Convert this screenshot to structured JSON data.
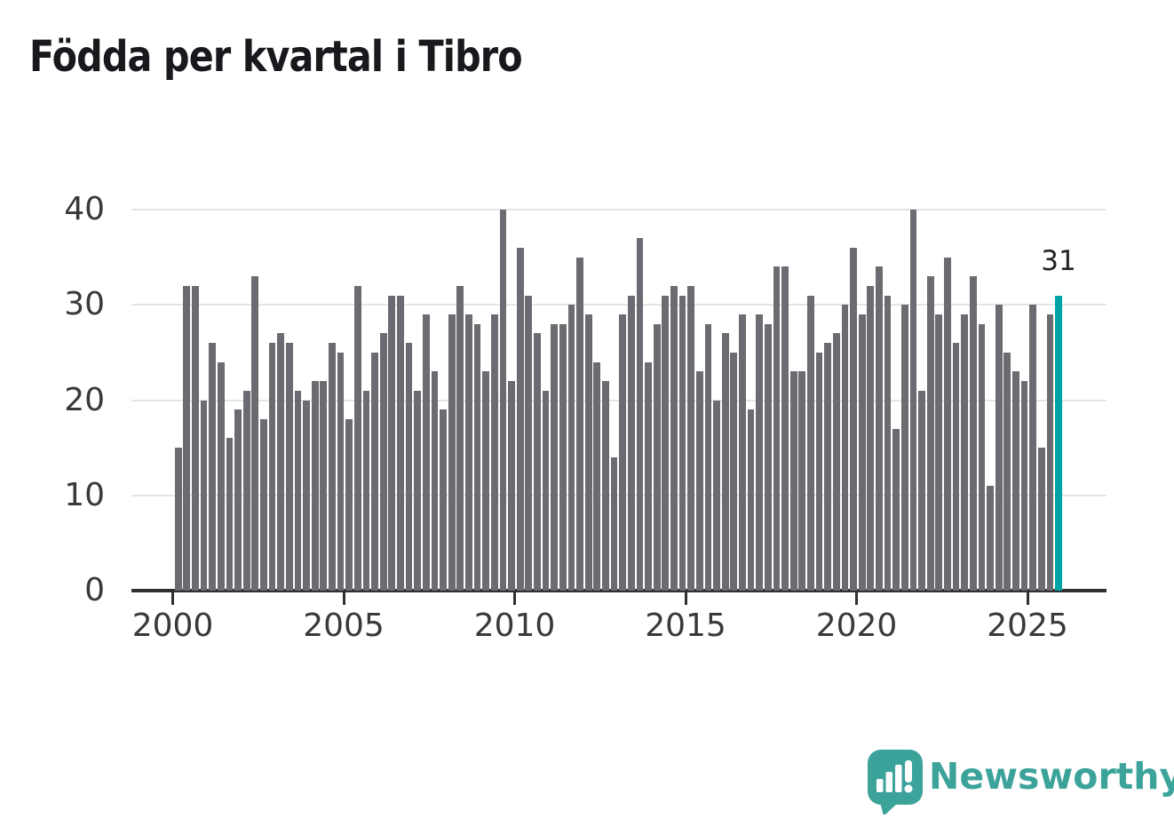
{
  "title": "Födda per kvartal i Tibro",
  "annotation_label": "31",
  "branding": {
    "wordmark": "Newsworthy",
    "logo_icon": "speech-bubble-bar-chart-exclamation-icon"
  },
  "colors": {
    "bar": "#6b6b71",
    "highlight": "#00a3a4",
    "gridline": "#e5e5e7",
    "axis": "#303034",
    "tick_text": "#39393d",
    "title_text": "#19191d",
    "brand_teal": "#3ba39a"
  },
  "chart_data": {
    "type": "bar",
    "title": "Födda per kvartal i Tibro",
    "x_unit": "quarter",
    "x_start": "2000-Q1",
    "x_end": "2025-Q4",
    "values": [
      15,
      32,
      32,
      20,
      26,
      24,
      16,
      19,
      21,
      33,
      18,
      26,
      27,
      26,
      21,
      20,
      22,
      22,
      26,
      25,
      18,
      32,
      21,
      25,
      27,
      31,
      31,
      26,
      21,
      29,
      23,
      19,
      29,
      32,
      29,
      28,
      23,
      29,
      40,
      22,
      36,
      31,
      27,
      21,
      28,
      28,
      30,
      35,
      29,
      24,
      22,
      14,
      29,
      31,
      37,
      24,
      28,
      31,
      32,
      31,
      32,
      23,
      28,
      20,
      27,
      25,
      29,
      19,
      29,
      28,
      34,
      34,
      23,
      23,
      31,
      25,
      26,
      27,
      30,
      36,
      29,
      32,
      34,
      31,
      17,
      30,
      40,
      21,
      33,
      29,
      35,
      26,
      29,
      33,
      28,
      11,
      30,
      25,
      23,
      22,
      30,
      15,
      29,
      31
    ],
    "highlight_last_value": 31,
    "yticks": [
      0,
      10,
      20,
      30,
      40
    ],
    "xticks": [
      "2000",
      "2005",
      "2010",
      "2015",
      "2020",
      "2025"
    ],
    "ylim": [
      0,
      40
    ],
    "grid": "horizontal",
    "legend": false
  }
}
